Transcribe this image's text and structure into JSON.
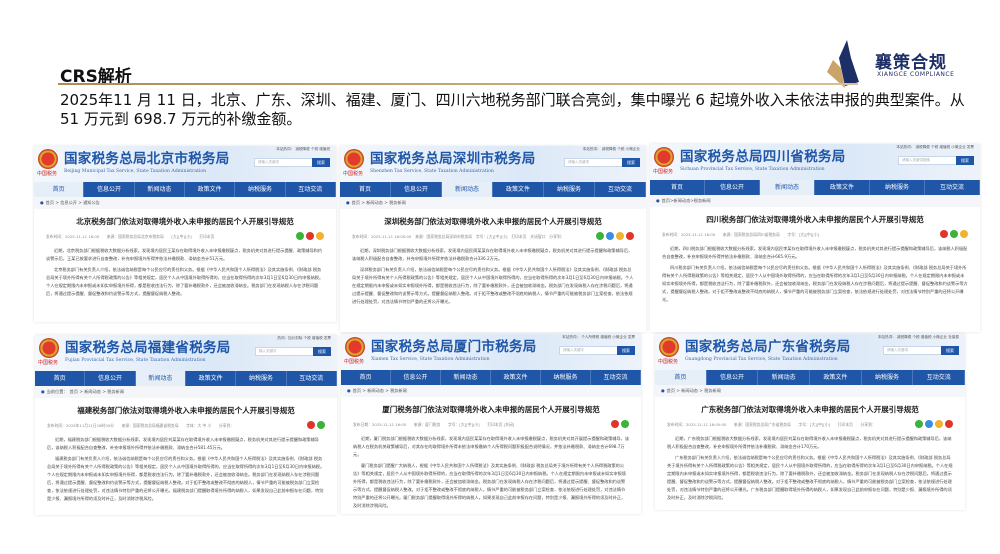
{
  "slide": {
    "title": "CRS解析",
    "intro": "2025年11 月 11 日，北京、广东、深圳、福建、厦门、四川六地税务部门联合亮剑，集中曝光 6 起境外收入未依法申报的典型案件。从 51 万元到 698.7 万元的补缴金额。",
    "logo": {
      "cn": "襄策合规",
      "en": "XIANGCE COMPLIANCE",
      "colors": {
        "navy": "#1d2f66",
        "gold": "#c9a46a"
      }
    }
  },
  "nav_items": [
    "首页",
    "信息公开",
    "新闻动态",
    "政策文件",
    "纳税服务",
    "互动交流"
  ],
  "search_button": "搜索",
  "colors": {
    "nav_blue": "#1f56a8",
    "title_blue": "#1f56a8",
    "accent_gold": "#b08a55"
  },
  "panels": [
    {
      "site": "国家税务总局北京市税务局",
      "site_en": "Beijing Municipal Tax Service, State Taxation Administration",
      "slogan": "中国税务",
      "active_nav": 0,
      "search_placeholder": "请输入关键词",
      "hot": "本站热词：  减税降费  个税  增值税",
      "breadcrumb": "首页 > 信息公开 > 通知公告",
      "title": "北京税务部门依法对取得境外收入未申报的居民个人开展引导规范",
      "meta": "发布时间：2025-11-11 16:00　　来源：国家税务总局北京市税务局　　[大][中][小]　　打印本页",
      "share_icons": [
        "wechat",
        "weibo",
        "favorite"
      ],
      "paragraphs": [
        "近期，北京税务部门根据税收大数据分析线索，发现境内居民王某存在取得境外收入未申报缴税疑点，税务机关对其进行提示提醒、政策辅导和约谈警示后，王某已按要求进行自查整改，补充申报境外所得并依法补缴税款、滞纳金合计51万元。",
        "北京税务部门有关负责人介绍，依法诚信纳税是每个公民应尽的责任和义务。根据《中华人民共和国个人所得税法》及其实施条例、《财政部 税务总局关于境外所得有关个人所得税政策的公告》等相关规定，居民个人从中国境外取得所得的，应当在取得所得的次年3月1日至6月30日内申报纳税。个人在规定期限内未申报或未如实申报境外所得，都是税收违法行为，除了要补缴税款外，还会被加收滞纳金。税务部门在发现纳税人存在涉税问题后，将通过提示提醒、督促整改和约谈警示等方式，提醒督促纳税人整改。"
      ]
    },
    {
      "site": "国家税务总局深圳市税务局",
      "site_en": "Shenzhen Tax Service, State Taxation Administration",
      "slogan": "中国税务",
      "active_nav": 2,
      "search_placeholder": "请输入关键词",
      "hot": "本站热词：  减税降费  个税  小微企业",
      "breadcrumb": "首页 > 新闻动态 > 税务新闻",
      "title": "深圳税务部门依法对取得境外收入未申报的居民个人开展引导规范",
      "meta": "发布时间：2025-11-11 16:00:00　来源：国家税务总局深圳市税务局　字号：[大][中][小]　打印本页　关闭窗口　分享到：",
      "share_icons": [
        "wechat",
        "qq",
        "favorite",
        "weibo"
      ],
      "paragraphs": [
        "近期，深圳税务部门根据税收大数据分析线索，发现境内居民周某某存在取得境外收入未申报缴税疑点，税务机关对其进行提示提醒和政策辅导后，该纳税人积极配合自查整改，补充申报境外所得并依法补缴税款合计336.2万元。",
        "深圳税务部门有关负责人介绍，依法诚信纳税是每个公民应尽的责任和义务。根据《中华人民共和国个人所得税法》及其实施条例、《财政部 税务总局关于境外所得有关个人所得税政策的公告》等相关规定，居民个人从中国境外取得所得的，应当在取得所得的次年3月1日至6月30日内申报纳税。个人在规定期限内未申报或未如实申报境外所得，都是税收违法行为，除了要补缴税款外，还会被加收滞纳金。税务部门在发现纳税人存在涉税问题后，将通过提示提醒、督促整改和约谈警示等方式，提醒督促纳税人整改。对于拒不整改或整改不彻底的纳税人，情节严重的可能被税务部门立案检查，依法依规进行处理处罚，对违法情节特别严重的还将公开曝光。"
      ]
    },
    {
      "site": "国家税务总局四川省税务局",
      "site_en": "Sichuan Provincial Tax Service, State Taxation Administration",
      "slogan": "中国税务",
      "active_nav": 2,
      "search_placeholder": "请输入关键词搜索",
      "hot": "本站热词：  减税降费  个税  增值税  小微企业  发票",
      "breadcrumb": "首页>新闻动态>税务新闻",
      "title": "四川税务部门依法对取得境外收入未申报的居民个人开展引导规范",
      "meta": "发布时间：2025-11-11 16:00　　来源：国家税务总局四川省税务局　　字号：[大][中][小]",
      "share_icons": [
        "weibo",
        "wechat",
        "favorite"
      ],
      "paragraphs": [
        "近期，四川税务部门根据税收大数据分析线索，发现境内居民李某存在取得境外收入未申报缴税疑点，税务机关对其进行提示提醒和政策辅导后，该纳税人积极配合自查整改，补充申报境外所得并依法补缴税款、滞纳金合计665.9万元。",
        "四川税务部门有关负责人介绍，依法诚信纳税是每个公民应尽的责任和义务。根据《中华人民共和国个人所得税法》及其实施条例、《财政部 税务总局关于境外所得有关个人所得税政策的公告》等相关规定，居民个人从中国境外取得所得的，应当在取得所得的次年3月1日至6月30日内申报纳税。个人在规定期限内未申报或未如实申报境外所得，都是税收违法行为，除了要补缴税款外，还会被加收滞纳金。税务部门在发现纳税人存在涉税问题后，将通过提示提醒、督促整改和约谈警示等方式，提醒督促纳税人整改。对于拒不整改或整改不彻底的纳税人，情节严重的可能被税务部门立案检查，依法依规进行处理处罚，对违法情节特别严重的还将公开曝光。"
      ]
    },
    {
      "site": "国家税务总局福建省税务局",
      "site_en": "Fujian Provincial Tax Service, State Taxation Administration",
      "slogan": "中国税务",
      "active_nav": 2,
      "search_placeholder": "输入关键字",
      "hot": "热词：加计扣除  个税  增值税  发票",
      "breadcrumb": "当前位置：　首页 > 新闻动态 > 税务新闻",
      "title": "福建税务部门依法对取得境外收入未申报的居民个人开展引导规范",
      "meta": "发布时间：2025年11月11日16时00分　　来源：国家税务总局福建省税务局　　字体：大 中 小　　分享到：",
      "share_icons": [
        "weibo",
        "wechat"
      ],
      "paragraphs": [
        "近期，福建税务部门根据税收大数据分析线索，发现境内居民刘某某存在取得境外收入未申报缴税疑点，税务机关对其进行提示提醒和政策辅导后，该纳税人积极配合自查整改，补充申报境外所得并依法补缴税款、滞纳金合计581.45万元。",
        "福建税务部门有关负责人介绍，依法诚信纳税是每个公民应尽的责任和义务。根据《中华人民共和国个人所得税法》及其实施条例、《财政部 税务总局关于境外所得有关个人所得税政策的公告》等相关规定，居民个人从中国境外取得所得的，应当在取得所得的次年3月1日至6月30日内申报纳税。个人在规定期限内未申报或未如实申报境外所得，都是税收违法行为，除了要补缴税款外，还会被加收滞纳金。税务部门在发现纳税人存在涉税问题后，将通过提示提醒、督促整改和约谈警示等方式，提醒督促纳税人整改。对于拒不整改或整改不彻底的纳税人，情节严重的可能被税务部门立案检查，依法依规进行处理处罚，对违法情节特别严重的还将公开曝光。福建税务部门提醒取得境外所得的纳税人，如果发现自己此前申报存在问题，特别是少报、漏报境外所得的须及时补正，及时消除涉税风险。"
      ]
    },
    {
      "site": "国家税务总局厦门市税务局",
      "site_en": "Xiamen Tax Service, State Taxation Administration",
      "slogan": "中国税务",
      "active_nav": -1,
      "search_placeholder": "请输入关键字",
      "hot": "本站热词：  个人所得税  增值税  小微企业  发票",
      "breadcrumb": "首页 > 新闻动态 > 税务新闻",
      "title": "厦门税务部门依法对取得境外收入未申报的居民个人开展引导规范",
      "meta": "发布日期：2025-11-11 16:00　　来源：厦门税务　　字号：[大][中][小]　　打印本页 [关闭]",
      "share_icons": [
        "weibo",
        "wechat"
      ],
      "paragraphs": [
        "近期，厦门税务部门根据税收大数据分析线索，发现境内居民某某存在取得境外收入未申报缴税疑点，税务机关对其开展提示提醒和政策辅导，该纳税人在税务机关政策辅导后，对其存在的取得境外所得未依法申报缴纳个人所得税问题积极配合说明情况，并依法补缴税款、滞纳金合计698.7万元。",
        "厦门税务部门提醒广大纳税人，根据《中华人民共和国个人所得税法》及其实施条例、《财政部 税务总局关于境外所得有关个人所得税政策的公告》等相关规定，居民个人从中国境外取得所得的，应当在取得所得的次年3月1日至6月30日内申报纳税。个人在规定期限内未申报或未如实申报境外所得，都是税收违法行为，除了要补缴税款外，还会被加收滞纳金。税务部门在发现纳税人存在涉税问题后，将通过提示提醒、督促整改和约谈警示等方式，提醒督促纳税人整改。对于拒不整改或整改不彻底的纳税人，情节严重的可能被税务部门立案检查，依法依规进行处理处罚，对违法情节特别严重的还将公开曝光。厦门税务部门提醒取得境外所得的纳税人，如果发现自己此前申报存在问题，特别是少报、漏报境外所得的须及时补正，及时消除涉税风险。"
      ]
    },
    {
      "site": "国家税务总局广东省税务局",
      "site_en": "Guangdong Provincial Tax Service, State Taxation Administration",
      "slogan": "中国税务",
      "active_nav": 0,
      "search_placeholder": "请输入关键词",
      "hot": "本站热词：  减税降费  个税  增值税  小微企业  社保费",
      "breadcrumb": "首页 > 新闻动态 > 税务新闻",
      "title": "广东税务部门依法对取得境外收入未申报的居民个人开展引导规范",
      "meta": "发布时间：2025-11-11 16:00:00　　来源：国家税务总局广东省税务局　　字号：[大][中][小]　　打印本页　　分享到：",
      "share_icons": [
        "wechat",
        "qq",
        "favorite",
        "weibo"
      ],
      "paragraphs": [
        "近期，广东税务部门根据税收大数据分析线索，发现境内居民刘某存在取得境外收入未申报缴税疑点，税务机关对其进行提示提醒和政策辅导后，该纳税人积极配合自查整改，补充申报境外所得并依法补缴税款、滞纳金合计170万元。",
        "广东税务部门有关负责人介绍，依法诚信纳税是每个公民应尽的责任和义务。根据《中华人民共和国个人所得税法》及其实施条例、《财政部 税务总局关于境外所得有关个人所得税政策的公告》等相关规定，居民个人从中国境外取得所得的，应当在取得所得的次年3月1日至6月30日内申报纳税。个人在规定期限内未申报或未如实申报境外所得，都是税收违法行为，除了要补缴税款外，还会被加收滞纳金。税务部门在发现纳税人存在涉税问题后，将通过提示提醒、督促整改和约谈警示等方式，提醒督促纳税人整改。对于拒不整改或整改不彻底的纳税人，情节严重的可能被税务部门立案检查，依法依规进行处理处罚，对违法情节特别严重的还将公开曝光。广东税务部门提醒取得境外所得的纳税人，如果发现自己此前申报存在问题，特别是少报、漏报境外所得的须及时补正，及时消除涉税风险。"
      ]
    }
  ]
}
